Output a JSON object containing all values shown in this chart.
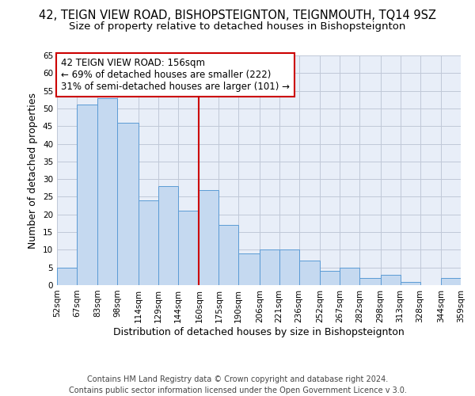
{
  "title": "42, TEIGN VIEW ROAD, BISHOPSTEIGNTON, TEIGNMOUTH, TQ14 9SZ",
  "subtitle": "Size of property relative to detached houses in Bishopsteignton",
  "xlabel": "Distribution of detached houses by size in Bishopsteignton",
  "ylabel": "Number of detached properties",
  "bar_labels": [
    "52sqm",
    "67sqm",
    "83sqm",
    "98sqm",
    "114sqm",
    "129sqm",
    "144sqm",
    "160sqm",
    "175sqm",
    "190sqm",
    "206sqm",
    "221sqm",
    "236sqm",
    "252sqm",
    "267sqm",
    "282sqm",
    "298sqm",
    "313sqm",
    "328sqm",
    "344sqm",
    "359sqm"
  ],
  "bar_values": [
    5,
    51,
    53,
    46,
    24,
    28,
    21,
    27,
    17,
    9,
    10,
    10,
    7,
    4,
    5,
    2,
    3,
    1,
    0,
    2
  ],
  "bin_edges": [
    52,
    67,
    83,
    98,
    114,
    129,
    144,
    160,
    175,
    190,
    206,
    221,
    236,
    252,
    267,
    282,
    298,
    313,
    328,
    344,
    359
  ],
  "property_line_x": 160,
  "ylim": [
    0,
    65
  ],
  "yticks": [
    0,
    5,
    10,
    15,
    20,
    25,
    30,
    35,
    40,
    45,
    50,
    55,
    60,
    65
  ],
  "bar_facecolor": "#c5d9f0",
  "bar_edgecolor": "#5b9bd5",
  "line_color": "#cc0000",
  "grid_color": "#c0c8d8",
  "background_color": "#e8eef8",
  "annotation_title": "42 TEIGN VIEW ROAD: 156sqm",
  "annotation_line1": "← 69% of detached houses are smaller (222)",
  "annotation_line2": "31% of semi-detached houses are larger (101) →",
  "annotation_box_edgecolor": "#cc0000",
  "footer_line1": "Contains HM Land Registry data © Crown copyright and database right 2024.",
  "footer_line2": "Contains public sector information licensed under the Open Government Licence v 3.0.",
  "title_fontsize": 10.5,
  "subtitle_fontsize": 9.5,
  "annotation_fontsize": 8.5,
  "footer_fontsize": 7,
  "axis_label_fontsize": 9,
  "tick_fontsize": 7.5
}
